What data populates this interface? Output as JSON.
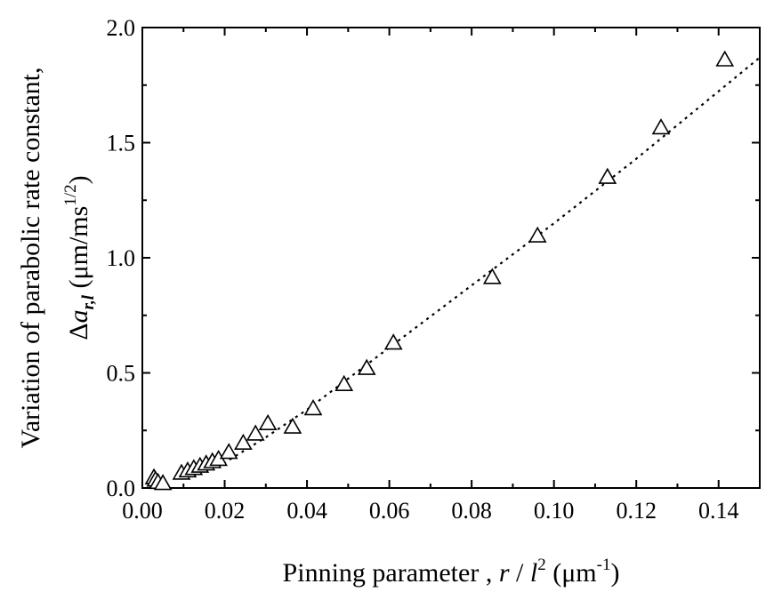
{
  "chart_data": {
    "type": "scatter",
    "xlabel": {
      "main": "Pinning parameter , ",
      "var_r": "r",
      "slash": " / ",
      "var_l": "l",
      "sup_2": "2",
      "unit_open": " (μm",
      "sup_unit": "-1",
      "unit_close": ")"
    },
    "ylabel": {
      "line1": "Variation of parabolic rate constant,",
      "delta": "Δ",
      "var_a": "a",
      "sub": "r,l",
      "unit_open": " (μm/ms",
      "sup_unit": "1/2",
      "unit_close": ")"
    },
    "xlim": [
      0.0,
      0.15
    ],
    "ylim": [
      0.0,
      2.0
    ],
    "x_ticks": [
      "0.00",
      "0.02",
      "0.04",
      "0.06",
      "0.08",
      "0.10",
      "0.12",
      "0.14"
    ],
    "x_tick_values": [
      0.0,
      0.02,
      0.04,
      0.06,
      0.08,
      0.1,
      0.12,
      0.14
    ],
    "y_ticks": [
      "0.0",
      "0.5",
      "1.0",
      "1.5",
      "2.0"
    ],
    "y_tick_values": [
      0.0,
      0.5,
      1.0,
      1.5,
      2.0
    ],
    "marker": "open-triangle",
    "grid": false,
    "points": [
      {
        "x": 0.0028,
        "y": 0.045
      },
      {
        "x": 0.0032,
        "y": 0.035
      },
      {
        "x": 0.0038,
        "y": 0.025
      },
      {
        "x": 0.005,
        "y": 0.02
      },
      {
        "x": 0.0095,
        "y": 0.065
      },
      {
        "x": 0.011,
        "y": 0.075
      },
      {
        "x": 0.0125,
        "y": 0.085
      },
      {
        "x": 0.014,
        "y": 0.095
      },
      {
        "x": 0.0155,
        "y": 0.105
      },
      {
        "x": 0.017,
        "y": 0.115
      },
      {
        "x": 0.0185,
        "y": 0.125
      },
      {
        "x": 0.021,
        "y": 0.155
      },
      {
        "x": 0.0245,
        "y": 0.195
      },
      {
        "x": 0.0275,
        "y": 0.235
      },
      {
        "x": 0.0305,
        "y": 0.28
      },
      {
        "x": 0.0365,
        "y": 0.265
      },
      {
        "x": 0.0415,
        "y": 0.345
      },
      {
        "x": 0.049,
        "y": 0.45
      },
      {
        "x": 0.0545,
        "y": 0.52
      },
      {
        "x": 0.061,
        "y": 0.63
      },
      {
        "x": 0.085,
        "y": 0.915
      },
      {
        "x": 0.096,
        "y": 1.095
      },
      {
        "x": 0.113,
        "y": 1.35
      },
      {
        "x": 0.126,
        "y": 1.565
      },
      {
        "x": 0.1415,
        "y": 1.86
      }
    ],
    "fit_line": {
      "style": "dotted",
      "points": [
        {
          "x": 0.008,
          "y": 0.05
        },
        {
          "x": 0.02,
          "y": 0.11
        },
        {
          "x": 0.03,
          "y": 0.22
        },
        {
          "x": 0.04,
          "y": 0.34
        },
        {
          "x": 0.06,
          "y": 0.61
        },
        {
          "x": 0.08,
          "y": 0.88
        },
        {
          "x": 0.1,
          "y": 1.15
        },
        {
          "x": 0.12,
          "y": 1.43
        },
        {
          "x": 0.15,
          "y": 1.87
        }
      ]
    }
  }
}
